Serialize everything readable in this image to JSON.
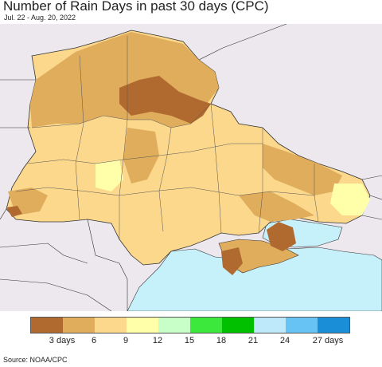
{
  "title": "Number of Rain Days in past 30 days (CPC)",
  "date_range": "Jul. 22 - Aug. 20, 2022",
  "source": "Source: NOAA/CPC",
  "legend": {
    "colors": [
      "#b06a30",
      "#e0ad5c",
      "#fcd88c",
      "#ffffaa",
      "#c8ffc8",
      "#3ce83c",
      "#00c000",
      "#bde9fb",
      "#66c3f4",
      "#1b8ed8"
    ],
    "labels": [
      "3 days",
      "6",
      "9",
      "12",
      "15",
      "18",
      "21",
      "24",
      "27 days"
    ]
  },
  "map_colors": {
    "background_land": "#ece8ee",
    "sea": "#c6f1fb",
    "ukraine_base": "#fcd88c",
    "zone_6": "#e0ad5c",
    "zone_3": "#b06a30",
    "zone_12": "#ffffaa",
    "borders": "#333333"
  }
}
